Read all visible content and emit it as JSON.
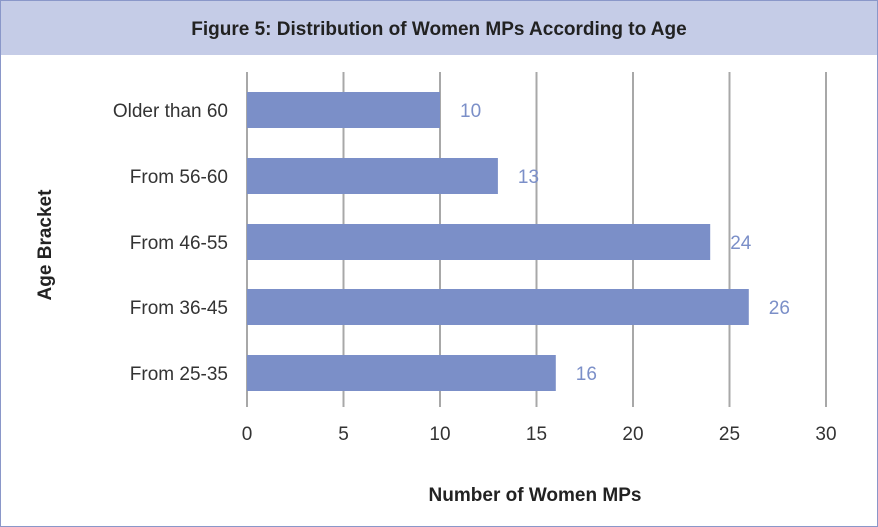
{
  "chart_data": {
    "type": "bar",
    "orientation": "horizontal",
    "title": "Figure 5: Distribution of Women MPs According to Age",
    "xlabel": "Number of Women MPs",
    "ylabel": "Age Bracket",
    "categories": [
      "Older than 60",
      "From 56-60",
      "From 46-55",
      "From 36-45",
      "From 25-35"
    ],
    "values": [
      10,
      13,
      24,
      26,
      16
    ],
    "xlim": [
      0,
      30
    ],
    "xticks": [
      "0",
      "5",
      "10",
      "15",
      "20",
      "25",
      "30"
    ],
    "grid": true,
    "bar_color": "#7b8fc8",
    "label_color": "#7b8fc8",
    "title_band_color": "#c5cce7"
  }
}
